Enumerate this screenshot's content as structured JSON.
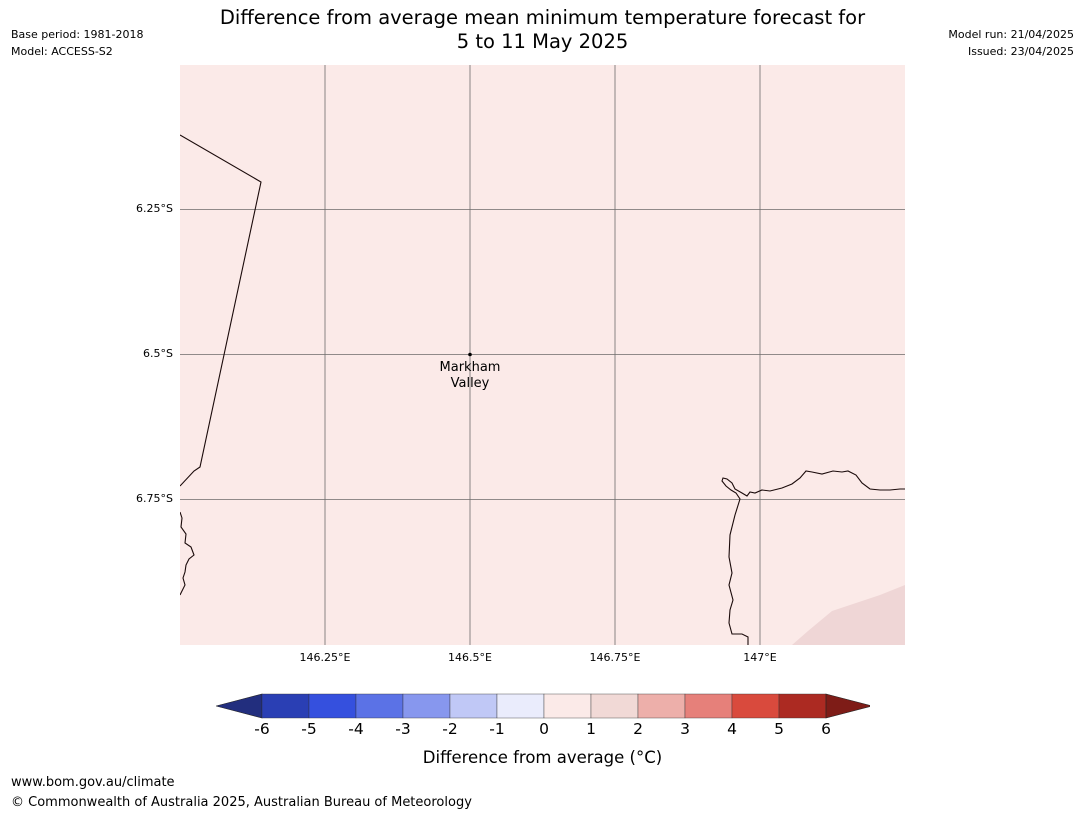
{
  "header": {
    "base_period": "Base period: 1981-2018",
    "model": "Model: ACCESS-S2",
    "model_run": "Model run: 21/04/2025",
    "issued": "Issued: 23/04/2025",
    "title_line1": "Difference from average mean minimum temperature forecast for",
    "title_line2": "5 to 11 May 2025"
  },
  "map": {
    "background_color": "#fbeae8",
    "patch_color": "#efd6d6",
    "lat_labels": [
      "6.25°S",
      "6.5°S",
      "6.75°S"
    ],
    "lon_labels": [
      "146.25°E",
      "146.5°E",
      "146.75°E",
      "147°E"
    ],
    "place": {
      "marker": "dot-marker",
      "line1": "Markham",
      "line2": "Valley"
    }
  },
  "colorbar": {
    "ticks": [
      "-6",
      "-5",
      "-4",
      "-3",
      "-2",
      "-1",
      "0",
      "1",
      "2",
      "3",
      "4",
      "5",
      "6"
    ],
    "colors": [
      "#222e7e",
      "#2a3fb4",
      "#3550de",
      "#5b72e6",
      "#8797ee",
      "#c0c8f6",
      "#eaecfc",
      "#fbeae8",
      "#f1d9d6",
      "#edafaa",
      "#e6807a",
      "#d94a3d",
      "#ac2a22",
      "#7e1c17"
    ],
    "label": "Difference from average (°C)"
  },
  "footer": {
    "url": "www.bom.gov.au/climate",
    "copyright": "© Commonwealth of Australia 2025, Australian Bureau of Meteorology"
  }
}
